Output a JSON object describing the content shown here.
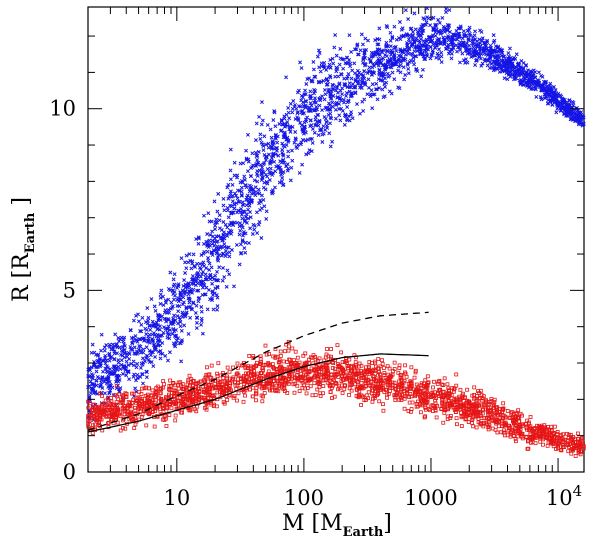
{
  "chart_data": {
    "type": "scatter",
    "title": "",
    "xlabel": {
      "main": "M",
      "sub": "Earth",
      "prefix": "M"
    },
    "ylabel": {
      "main": "R",
      "sub": "Earth",
      "prefix": "R"
    },
    "x_scale": "log",
    "xlim": [
      2,
      16000
    ],
    "ylim": [
      0,
      12.8
    ],
    "x_ticks": [
      {
        "value": 10,
        "label": "10"
      },
      {
        "value": 100,
        "label": "100"
      },
      {
        "value": 1000,
        "label": "1000"
      },
      {
        "value": 10000,
        "label": "10",
        "exp": "4"
      }
    ],
    "y_ticks": [
      {
        "value": 0,
        "label": "0"
      },
      {
        "value": 5,
        "label": "5"
      },
      {
        "value": 10,
        "label": "10"
      }
    ],
    "series": [
      {
        "name": "blue-crosses",
        "marker": "x",
        "color": "#1515e6",
        "trend": [
          [
            2,
            2.4
          ],
          [
            5,
            3.3
          ],
          [
            10,
            4.3
          ],
          [
            20,
            6.0
          ],
          [
            50,
            8.5
          ],
          [
            100,
            9.8
          ],
          [
            300,
            11.0
          ],
          [
            700,
            11.7
          ],
          [
            1400,
            12.0
          ],
          [
            3000,
            11.5
          ],
          [
            7000,
            10.7
          ],
          [
            15000,
            9.7
          ]
        ],
        "spread": [
          [
            2,
            0.9
          ],
          [
            10,
            1.1
          ],
          [
            30,
            1.5
          ],
          [
            100,
            1.3
          ],
          [
            500,
            0.9
          ],
          [
            1500,
            0.5
          ],
          [
            15000,
            0.25
          ]
        ]
      },
      {
        "name": "red-squares",
        "marker": "square",
        "color": "#e61515",
        "trend": [
          [
            2,
            1.55
          ],
          [
            10,
            2.0
          ],
          [
            30,
            2.5
          ],
          [
            80,
            2.8
          ],
          [
            200,
            2.7
          ],
          [
            500,
            2.4
          ],
          [
            1000,
            2.1
          ],
          [
            3000,
            1.6
          ],
          [
            6000,
            1.1
          ],
          [
            15000,
            0.7
          ]
        ],
        "spread": [
          [
            2,
            0.45
          ],
          [
            30,
            0.55
          ],
          [
            300,
            0.6
          ],
          [
            3000,
            0.5
          ],
          [
            15000,
            0.3
          ]
        ]
      },
      {
        "name": "solid-line",
        "style": "solid",
        "color": "#000000",
        "x": [
          2,
          5,
          10,
          20,
          50,
          100,
          200,
          400,
          1000
        ],
        "y": [
          1.1,
          1.4,
          1.7,
          2.0,
          2.55,
          2.9,
          3.15,
          3.25,
          3.2
        ]
      },
      {
        "name": "dashed-line",
        "style": "dashed",
        "color": "#000000",
        "x": [
          2,
          5,
          10,
          20,
          50,
          100,
          200,
          400,
          1000
        ],
        "y": [
          1.15,
          1.6,
          2.1,
          2.55,
          3.3,
          3.75,
          4.1,
          4.3,
          4.4
        ]
      }
    ]
  }
}
